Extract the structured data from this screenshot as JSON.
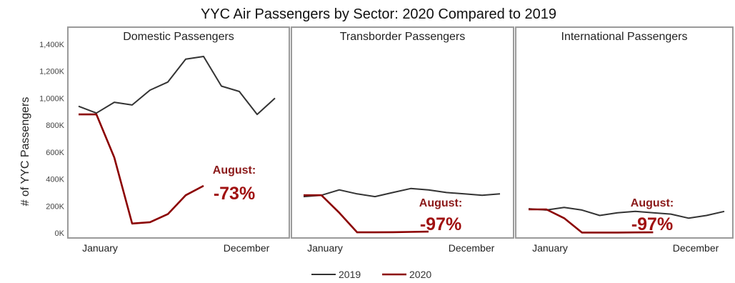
{
  "chart_data": {
    "type": "line",
    "title": "YYC Air Passengers by Sector: 2020 Compared to 2019",
    "ylabel": "# of YYC Passengers",
    "ylim": [
      0,
      1400000
    ],
    "yticks": [
      "0K",
      "200K",
      "400K",
      "600K",
      "800K",
      "1,000K",
      "1,200K",
      "1,400K"
    ],
    "colors": {
      "2019": "#333333",
      "2020": "#8b0000"
    },
    "legend": {
      "placement": "bottom-center",
      "entries": [
        "2019",
        "2020"
      ]
    },
    "panels": [
      {
        "title": "Domestic Passengers",
        "x_start_label": "January",
        "x_end_label": "December",
        "series": [
          {
            "name": "2019",
            "values": [
              940000,
              890000,
              970000,
              950000,
              1060000,
              1120000,
              1290000,
              1310000,
              1090000,
              1050000,
              880000,
              1000000
            ]
          },
          {
            "name": "2020",
            "values": [
              880000,
              880000,
              560000,
              70000,
              80000,
              140000,
              280000,
              350000
            ]
          }
        ],
        "annotation": {
          "label": "August:",
          "value": "-73%"
        }
      },
      {
        "title": "Transborder Passengers",
        "x_start_label": "January",
        "x_end_label": "December",
        "series": [
          {
            "name": "2019",
            "values": [
              270000,
              280000,
              320000,
              290000,
              270000,
              300000,
              330000,
              320000,
              300000,
              290000,
              280000,
              290000
            ]
          },
          {
            "name": "2020",
            "values": [
              280000,
              280000,
              150000,
              5000,
              5000,
              6000,
              8000,
              10000
            ]
          }
        ],
        "annotation": {
          "label": "August:",
          "value": "-97%"
        }
      },
      {
        "title": "International Passengers",
        "x_start_label": "January",
        "x_end_label": "December",
        "series": [
          {
            "name": "2019",
            "values": [
              180000,
              170000,
              190000,
              170000,
              130000,
              150000,
              160000,
              150000,
              140000,
              110000,
              130000,
              160000
            ]
          },
          {
            "name": "2020",
            "values": [
              175000,
              175000,
              110000,
              3000,
              3000,
              3000,
              4000,
              5000
            ]
          }
        ],
        "annotation": {
          "label": "August:",
          "value": "-97%"
        }
      }
    ]
  }
}
